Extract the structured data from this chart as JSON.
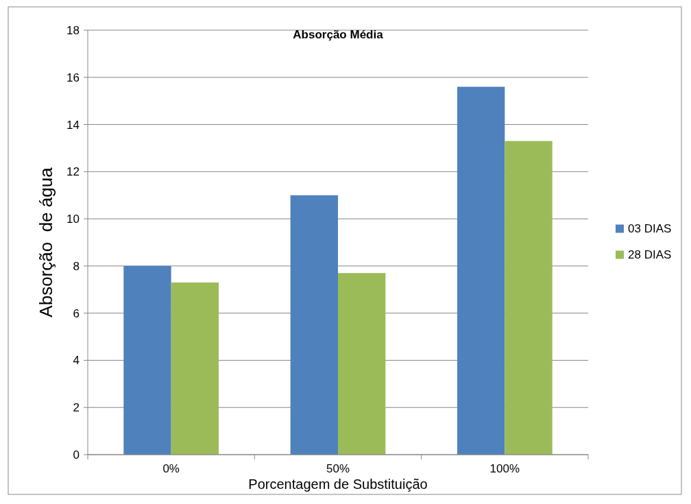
{
  "chart_data": {
    "type": "bar",
    "title": "Absorção Média",
    "xlabel": "Porcentagem de Substituição",
    "ylabel": "Absorção  de água",
    "categories": [
      "0%",
      "50%",
      "100%"
    ],
    "series": [
      {
        "name": "03 DIAS",
        "color": "#4f81bd",
        "values": [
          8,
          11,
          15.6
        ]
      },
      {
        "name": "28 DIAS",
        "color": "#9bbb59",
        "values": [
          7.3,
          7.7,
          13.3
        ]
      }
    ],
    "ylim": [
      0,
      18
    ],
    "yticks": [
      0,
      2,
      4,
      6,
      8,
      10,
      12,
      14,
      16,
      18
    ],
    "grid": "y",
    "legend": "right"
  }
}
